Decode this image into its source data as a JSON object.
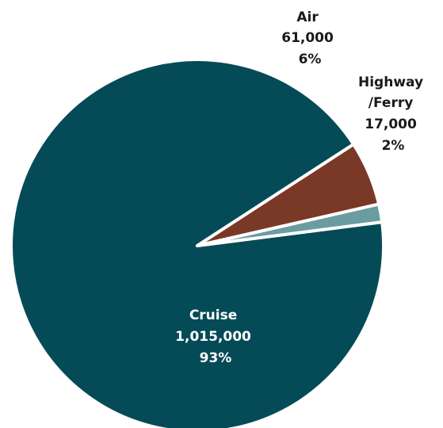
{
  "chart_data": {
    "type": "pie",
    "title": "",
    "slices": [
      {
        "label": "Cruise",
        "value": 1015000,
        "value_label": "1,015,000",
        "percent_label": "93%",
        "color": "#054b57",
        "label_lines": [
          "Cruise"
        ],
        "label_position": "inside"
      },
      {
        "label": "Air",
        "value": 61000,
        "value_label": "61,000",
        "percent_label": "6%",
        "color": "#7a3826",
        "label_lines": [
          "Air"
        ],
        "label_position": "outside"
      },
      {
        "label": "Highway/Ferry",
        "value": 17000,
        "value_label": "17,000",
        "percent_label": "2%",
        "color": "#6a9ca0",
        "label_lines": [
          "Highway",
          "/Ferry"
        ],
        "label_position": "outside"
      }
    ],
    "slice_border_color": "#ffffff",
    "legend": "none"
  }
}
